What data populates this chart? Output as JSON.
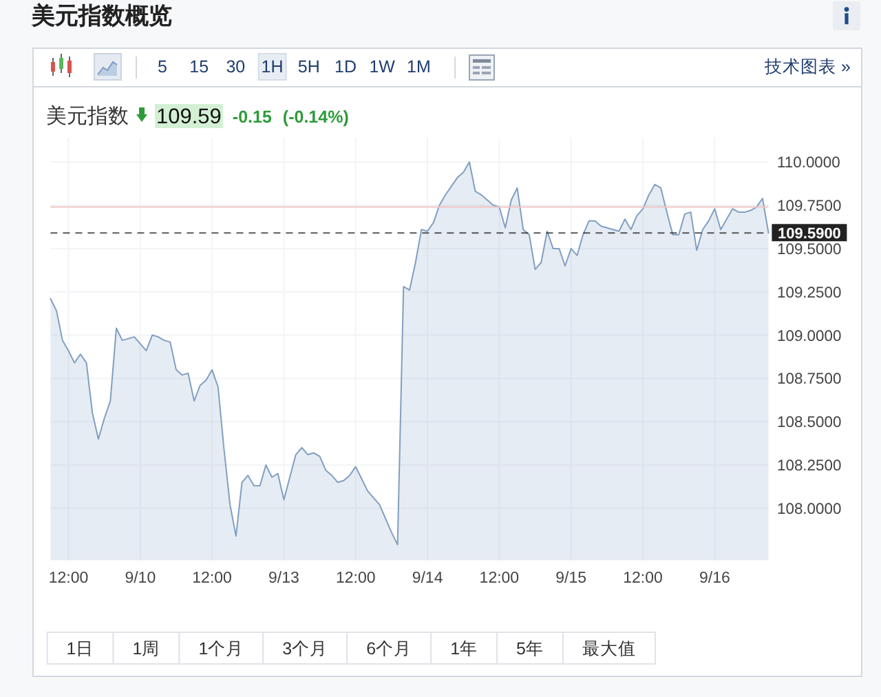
{
  "chart_data": {
    "type": "area",
    "title": "美元指数概览",
    "subtitle": "美元指数 109.59 -0.15 (-0.14%)",
    "categories": [
      null,
      null,
      null,
      "12:00",
      null,
      null,
      null,
      null,
      null,
      null,
      null,
      null,
      null,
      null,
      null,
      "9/10",
      null,
      null,
      null,
      null,
      null,
      null,
      null,
      null,
      null,
      null,
      null,
      "12:00",
      null,
      null,
      null,
      null,
      null,
      null,
      null,
      null,
      null,
      null,
      null,
      "9/13",
      null,
      null,
      null,
      null,
      null,
      null,
      null,
      null,
      null,
      null,
      null,
      "12:00",
      null,
      null,
      null,
      null,
      null,
      null,
      null,
      null,
      null,
      null,
      null,
      "9/14",
      null,
      null,
      null,
      null,
      null,
      null,
      null,
      null,
      null,
      null,
      null,
      "12:00",
      null,
      null,
      null,
      null,
      null,
      null,
      null,
      null,
      null,
      null,
      null,
      "9/15",
      null,
      null,
      null,
      null,
      null,
      null,
      null,
      null,
      null,
      null,
      null,
      "12:00",
      null,
      null,
      null,
      null,
      null,
      null,
      null,
      null,
      null,
      null,
      null,
      "9/16",
      null,
      null,
      null,
      null,
      null,
      null,
      null,
      null,
      null
    ],
    "values": [
      109.21,
      109.14,
      108.97,
      108.91,
      108.84,
      108.89,
      108.84,
      108.55,
      108.4,
      108.52,
      108.62,
      109.04,
      108.97,
      108.98,
      108.99,
      108.95,
      108.91,
      109.0,
      108.99,
      108.97,
      108.96,
      108.8,
      108.77,
      108.78,
      108.62,
      108.71,
      108.74,
      108.8,
      108.7,
      108.34,
      108.02,
      107.84,
      108.15,
      108.19,
      108.13,
      108.13,
      108.25,
      108.18,
      108.2,
      108.05,
      108.18,
      108.31,
      108.35,
      108.31,
      108.32,
      108.3,
      108.22,
      108.19,
      108.15,
      108.16,
      108.19,
      108.24,
      108.17,
      108.1,
      108.06,
      108.02,
      107.94,
      107.86,
      107.79,
      109.28,
      109.26,
      109.42,
      109.61,
      109.6,
      109.65,
      109.75,
      109.81,
      109.86,
      109.91,
      109.94,
      110.0,
      109.83,
      109.81,
      109.78,
      109.75,
      109.74,
      109.62,
      109.78,
      109.85,
      109.61,
      109.58,
      109.38,
      109.42,
      109.6,
      109.5,
      109.5,
      109.4,
      109.5,
      109.46,
      109.58,
      109.66,
      109.66,
      109.63,
      109.62,
      109.61,
      109.6,
      109.67,
      109.61,
      109.69,
      109.73,
      109.81,
      109.87,
      109.85,
      109.71,
      109.58,
      109.58,
      109.7,
      109.71,
      109.49,
      109.61,
      109.66,
      109.73,
      109.61,
      109.67,
      109.73,
      109.71,
      109.71,
      109.72,
      109.74,
      109.79,
      109.59
    ],
    "color": "#809fc2",
    "ylim": [
      107.7,
      110.14
    ],
    "yticks": [
      {
        "value": 108,
        "label": "108.0000"
      },
      {
        "value": 108.25,
        "label": "108.2500"
      },
      {
        "value": 108.5,
        "label": "108.5000"
      },
      {
        "value": 108.75,
        "label": "108.7500"
      },
      {
        "value": 109,
        "label": "109.0000"
      },
      {
        "value": 109.25,
        "label": "109.2500"
      },
      {
        "value": 109.5,
        "label": "109.5000"
      },
      {
        "value": 109.75,
        "label": "109.7500"
      },
      {
        "value": 110,
        "label": "110.0000"
      }
    ],
    "ref_lines": [
      {
        "axis": "y",
        "value": 109.74,
        "color": "#f0c4c4"
      },
      {
        "axis": "y",
        "value": 109.59,
        "label": "109.5900",
        "color": "#222222",
        "line_style": "dashed"
      }
    ],
    "grid": true,
    "annotations": [
      "5",
      "15",
      "30",
      "1H",
      "5H",
      "1D",
      "1W",
      "1M",
      "技术图表 »",
      "1日",
      "1周",
      "1个月",
      "3个月",
      "6个月",
      "1年",
      "5年",
      "最大值"
    ]
  }
}
